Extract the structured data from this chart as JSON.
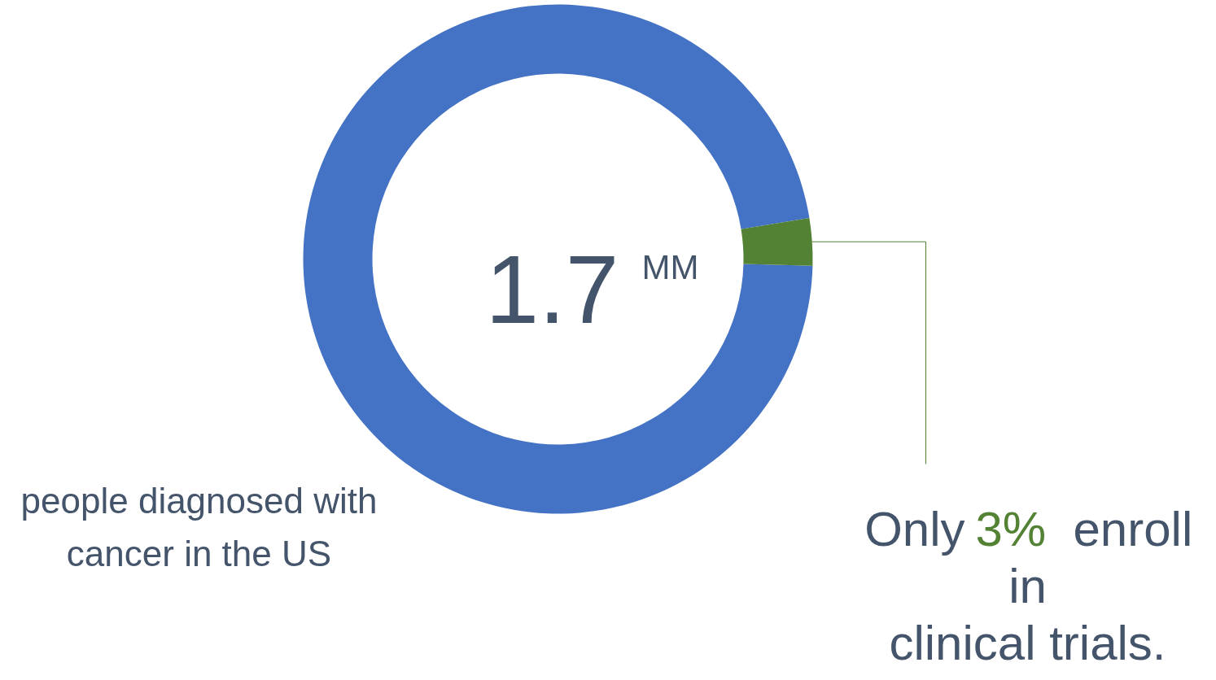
{
  "chart_data": {
    "type": "donut",
    "categories": [
      null,
      null
    ],
    "values": [
      97,
      3
    ],
    "colors": [
      "#4472c4",
      "#548235"
    ],
    "annotations": [
      "1.7 MM",
      "people diagnosed with cancer in the US",
      "Only 3% enroll in clinical trials."
    ]
  }
}
